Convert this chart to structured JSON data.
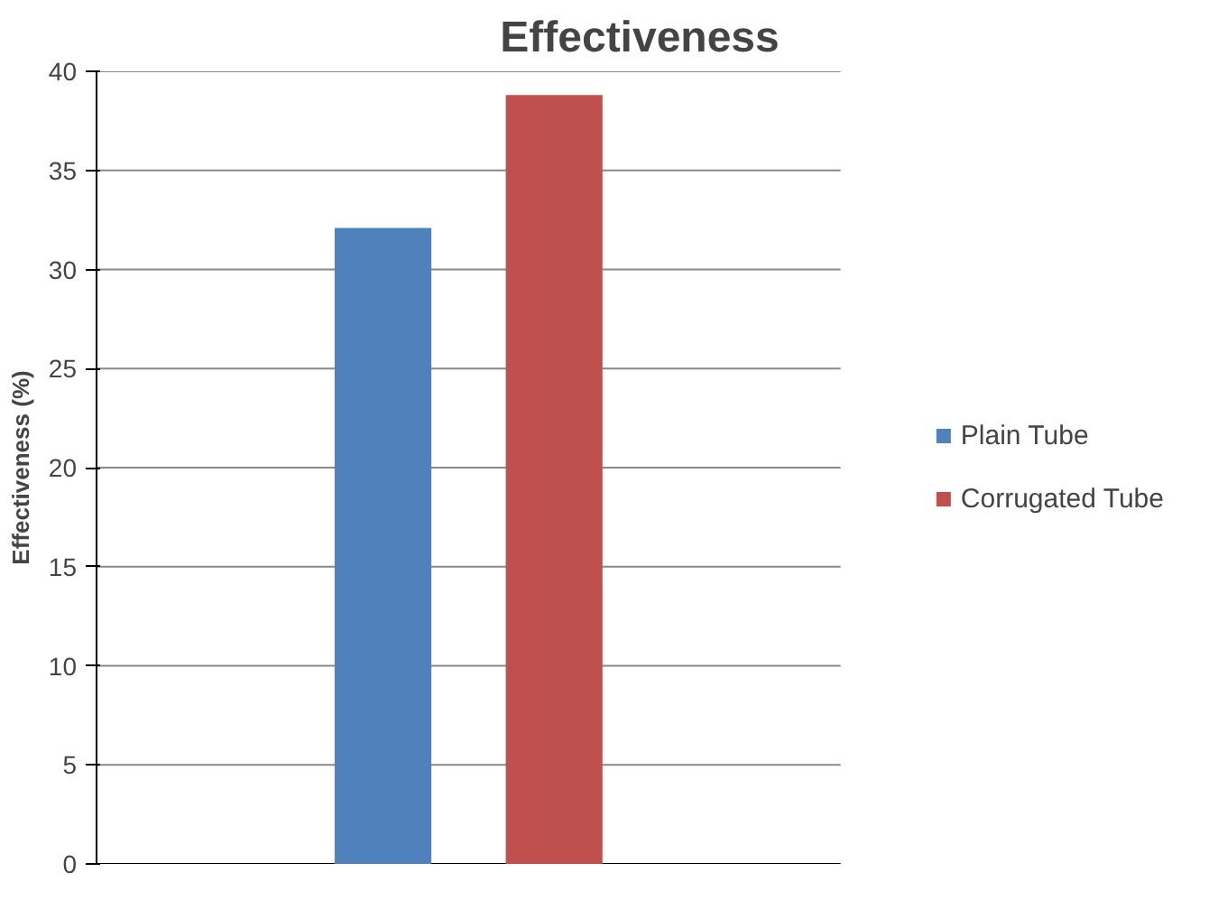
{
  "chart_data": {
    "type": "bar",
    "title": "Effectiveness",
    "ylabel": "Effectiveness (%)",
    "categories": [
      null
    ],
    "series": [
      {
        "name": "Plain Tube",
        "color": "#4f81bd",
        "values": [
          32.1
        ]
      },
      {
        "name": "Corrugated Tube",
        "color": "#c0504d",
        "values": [
          38.8
        ]
      }
    ],
    "ylim": [
      0,
      40
    ],
    "yticks": [
      0,
      5,
      10,
      15,
      20,
      25,
      30,
      35,
      40
    ],
    "grid": "y",
    "legend": "right",
    "tick_labels": "y"
  }
}
